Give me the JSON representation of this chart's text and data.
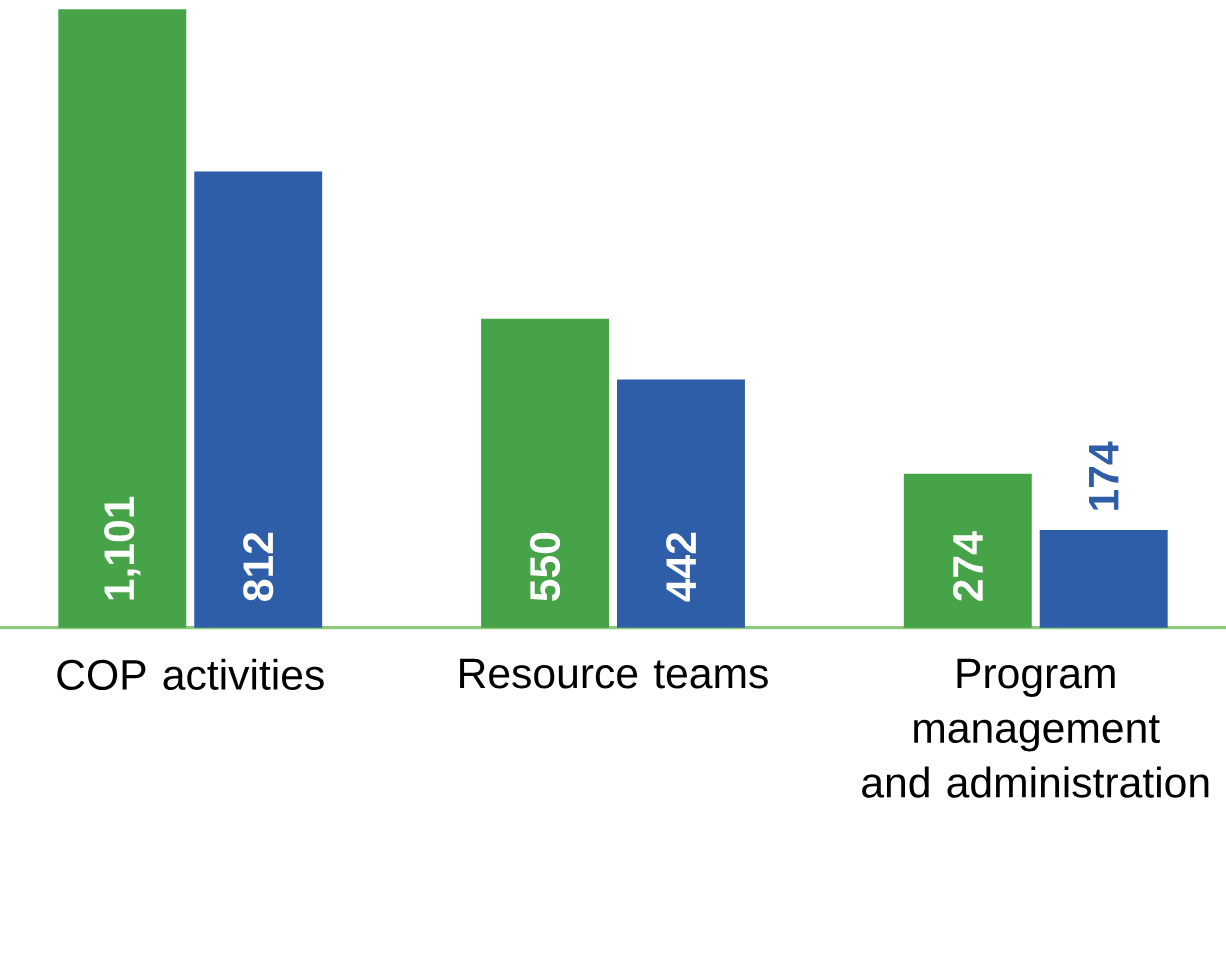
{
  "chart_data": {
    "type": "bar",
    "categories": [
      "COP activities",
      "Resource teams",
      "Program management and administration"
    ],
    "series": [
      {
        "color": "#47a347",
        "values": [
          1101,
          550,
          274
        ],
        "value_labels": [
          "1,101",
          "550",
          "274"
        ]
      },
      {
        "color": "#2f5ea8",
        "values": [
          812,
          442,
          174
        ],
        "value_labels": [
          "812",
          "442",
          "174"
        ]
      }
    ],
    "tick_labels": "x"
  }
}
